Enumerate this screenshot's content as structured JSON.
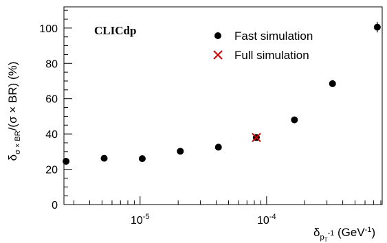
{
  "chart_data": {
    "type": "scatter",
    "xscale": "log",
    "xlim": [
      2.5e-06,
      0.00082
    ],
    "ylim": [
      0,
      112
    ],
    "ylabel": "δσ×BR/(σ × BR) (%)",
    "xlabel": "δpT-1 (GeV-1)",
    "y_ticks": [
      0,
      20,
      40,
      60,
      80,
      100
    ],
    "x_tick_labels": [
      {
        "value": 1e-05,
        "base": "10",
        "exp": "-5"
      },
      {
        "value": 0.0001,
        "base": "10",
        "exp": "-4"
      }
    ],
    "watermark": "CLICdp",
    "legend_position": "top-right",
    "series": [
      {
        "name": "Fast simulation",
        "marker": "circle",
        "color": "#000000",
        "x": [
          2.6e-06,
          5.2e-06,
          1.04e-05,
          2.08e-05,
          4.16e-05,
          8.3e-05,
          0.000166,
          0.000332,
          0.00075
        ],
        "y": [
          24.5,
          26.2,
          26.0,
          30.2,
          32.5,
          38.0,
          48.0,
          68.5,
          100.5
        ],
        "yerr": [
          0.5,
          0.5,
          0.5,
          0.5,
          0.6,
          0.8,
          1.0,
          2.0,
          3.0
        ]
      },
      {
        "name": "Full simulation",
        "marker": "x",
        "color": "#cc0000",
        "x": [
          8.3e-05
        ],
        "y": [
          38.0
        ],
        "yerr": [
          0
        ]
      }
    ]
  }
}
